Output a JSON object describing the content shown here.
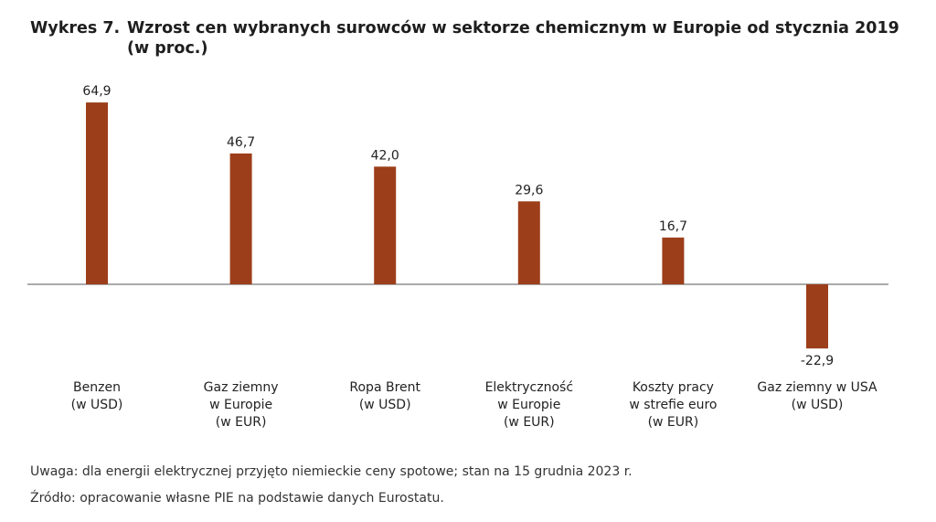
{
  "title": {
    "label": "Wykres 7.",
    "text": "Wzrost cen wybranych surowców w sektorze chemicznym w Europie od stycznia 2019",
    "unit": "(w proc.)"
  },
  "chart_data": {
    "type": "bar",
    "categories": [
      [
        "Benzen",
        "(w USD)"
      ],
      [
        "Gaz ziemny",
        "w Europie",
        "(w EUR)"
      ],
      [
        "Ropa Brent",
        "(w USD)"
      ],
      [
        "Elektryczność",
        "w Europie",
        "(w EUR)"
      ],
      [
        "Koszty pracy",
        "w strefie euro",
        "(w EUR)"
      ],
      [
        "Gaz ziemny w USA",
        "(w USD)"
      ]
    ],
    "values": [
      64.9,
      46.7,
      42.0,
      29.6,
      16.7,
      -22.9
    ],
    "value_labels": [
      "64,9",
      "46,7",
      "42,0",
      "29,6",
      "16,7",
      "-22,9"
    ],
    "bar_color": "#9c3e1a",
    "xlabel": "",
    "ylabel": ""
  },
  "footnotes": {
    "note": "Uwaga: dla energii elektrycznej przyjęto niemieckie ceny spotowe; stan na 15 grudnia 2023 r.",
    "source": "Źródło: opracowanie własne PIE na podstawie danych Eurostatu."
  }
}
